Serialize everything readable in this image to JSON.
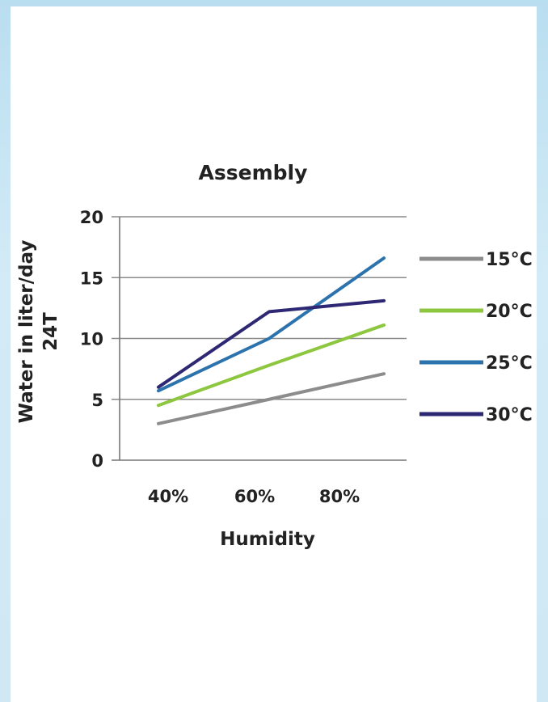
{
  "chart_data": {
    "type": "line",
    "title": "Assembly",
    "xlabel": "Humidity",
    "ylabel": "Water in liter/day",
    "ylabel2": "24T",
    "categories": [
      "40%",
      "60%",
      "80%"
    ],
    "x_ticks": [
      "40%",
      "60%",
      "80%"
    ],
    "y_ticks": [
      "0",
      "5",
      "10",
      "15",
      "20"
    ],
    "ylim": [
      0,
      20
    ],
    "grid": true,
    "legend_position": "right",
    "series": [
      {
        "name": "15°C",
        "color": "#8c8c8c",
        "values": [
          3.0,
          5.0,
          7.1
        ]
      },
      {
        "name": "20°C",
        "color": "#8dc63f",
        "values": [
          4.5,
          7.8,
          11.1
        ]
      },
      {
        "name": "25°C",
        "color": "#2c73ad",
        "values": [
          5.7,
          10.0,
          16.6
        ]
      },
      {
        "name": "30°C",
        "color": "#2e2874",
        "values": [
          6.0,
          12.2,
          13.1
        ]
      }
    ]
  }
}
